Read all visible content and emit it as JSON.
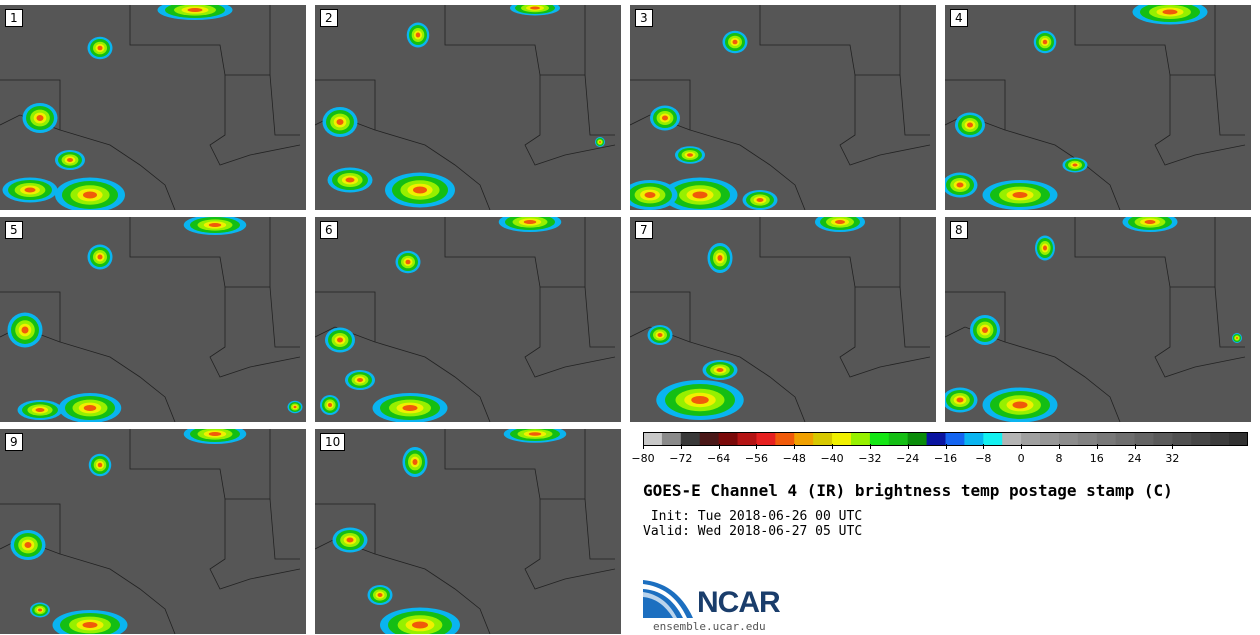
{
  "panels": [
    {
      "label": "1"
    },
    {
      "label": "2"
    },
    {
      "label": "3"
    },
    {
      "label": "4"
    },
    {
      "label": "5"
    },
    {
      "label": "6"
    },
    {
      "label": "7"
    },
    {
      "label": "8"
    },
    {
      "label": "9"
    },
    {
      "label": "10"
    }
  ],
  "colorbar": {
    "colors": [
      "#c8c8c8",
      "#8a8a8a",
      "#3a3a3a",
      "#4a1818",
      "#7a0a0a",
      "#b41414",
      "#e62020",
      "#f05a0a",
      "#f0a000",
      "#d7c800",
      "#f0f000",
      "#96f000",
      "#14e614",
      "#14be14",
      "#0a8c0a",
      "#0a14a0",
      "#1464f0",
      "#0ab4f0",
      "#14f0f0",
      "#b4b4b4",
      "#a0a0a0",
      "#969696",
      "#8c8c8c",
      "#828282",
      "#787878",
      "#6e6e6e",
      "#646464",
      "#5a5a5a",
      "#505050",
      "#464646",
      "#3c3c3c",
      "#323232"
    ],
    "ticks": [
      "−80",
      "−72",
      "−64",
      "−56",
      "−48",
      "−40",
      "−32",
      "−24",
      "−16",
      "−8",
      "0",
      "8",
      "16",
      "24",
      "32"
    ]
  },
  "title": "GOES-E Channel 4 (IR) brightness temp postage stamp (C)",
  "init": " Init: Tue 2018-06-26 00 UTC",
  "valid": "Valid: Wed 2018-06-27 05 UTC",
  "logo_text": "NCAR",
  "site": "ensemble.ucar.edu"
}
